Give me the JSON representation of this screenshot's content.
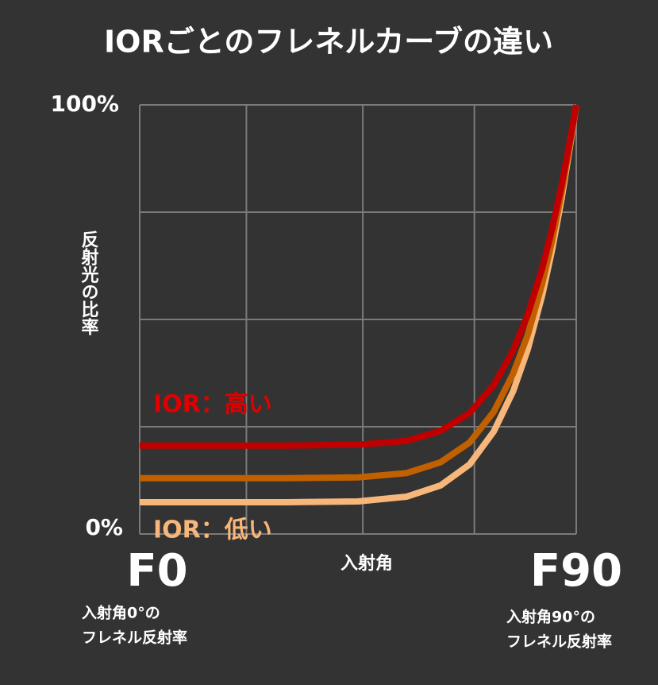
{
  "chart_data": {
    "type": "line",
    "title": "IORごとのフレネルカーブの違い",
    "y_label": "反射光の比率",
    "x_label": "入射角",
    "x": [
      0,
      15,
      30,
      45,
      55,
      62,
      68,
      73,
      77,
      80,
      83,
      85,
      87,
      89,
      90
    ],
    "series": [
      {
        "color": "#c00000",
        "values": [
          20.6,
          20.6,
          20.6,
          20.8,
          21.7,
          24.0,
          28.2,
          34.7,
          42.8,
          51.1,
          62.0,
          71.0,
          81.3,
          93.5,
          100
        ]
      },
      {
        "color": "#c06000",
        "values": [
          13,
          13,
          13,
          13.2,
          14.2,
          16.7,
          21.3,
          28.5,
          37.4,
          46.4,
          58.4,
          68.2,
          79.6,
          92.9,
          100
        ]
      },
      {
        "color": "#f7b67a",
        "values": [
          7.4,
          7.4,
          7.4,
          7.6,
          8.7,
          11.3,
          16.2,
          23.9,
          33.3,
          43.0,
          55.7,
          66.1,
          78.2,
          92.4,
          100
        ]
      }
    ],
    "xlim": [
      0,
      90
    ],
    "ylim": [
      0,
      100
    ],
    "xticks": [
      {
        "value": 0,
        "label": "F0"
      },
      {
        "value": 90,
        "label": "F90"
      }
    ],
    "yticks": [
      {
        "value": 0,
        "label": "0%"
      },
      {
        "value": 100,
        "label": "100%"
      }
    ],
    "xgrid": [
      0,
      22,
      46,
      69,
      90
    ],
    "ygrid": [
      0,
      25,
      50,
      75,
      100
    ],
    "grid": true,
    "annotations": [
      {
        "text": "IOR：高い",
        "color": "#e00000"
      },
      {
        "text": "IOR：低い",
        "color": "#f7b67a"
      }
    ],
    "f0_note": [
      "入射角0°の",
      "フレネル反射率"
    ],
    "f90_note": [
      "入射角90°の",
      "フレネル反射率"
    ]
  }
}
